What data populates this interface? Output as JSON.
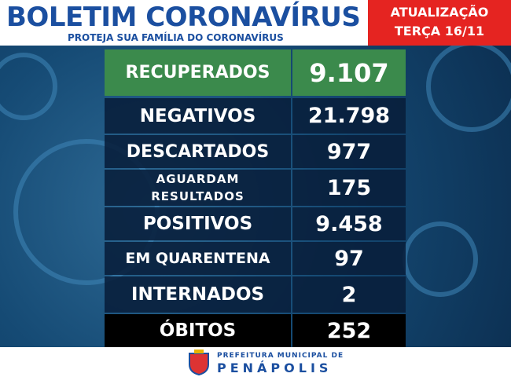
{
  "header": {
    "title": "BOLETIM CORONAVÍRUS",
    "subtitle": "PROTEJA SUA FAMÍLIA DO CORONAVÍRUS"
  },
  "update": {
    "label": "ATUALIZAÇÃO",
    "date": "TERÇA 16/11"
  },
  "table": {
    "rows": [
      [
        "RECUPERADOS",
        "9.107"
      ],
      [
        "NEGATIVOS",
        "21.798"
      ],
      [
        "DESCARTADOS",
        "977"
      ],
      [
        "AGUARDAM RESULTADOS",
        "175"
      ],
      [
        "POSITIVOS",
        "9.458"
      ],
      [
        "EM QUARENTENA",
        "97"
      ],
      [
        "INTERNADOS",
        "2"
      ],
      [
        "ÓBITOS",
        "252"
      ]
    ]
  },
  "footer": {
    "line1": "PREFEITURA MUNICIPAL DE",
    "line2": "PENÁPOLIS"
  }
}
